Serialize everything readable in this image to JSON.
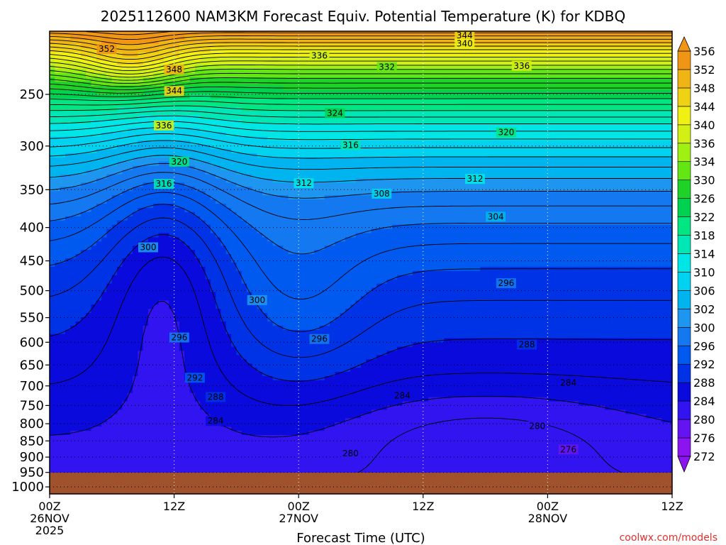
{
  "chart_data": {
    "type": "heatmap",
    "title": "2025112600 NAM3KM Forecast Equiv. Potential Temperature (K) for KDBQ",
    "xlabel": "Forecast Time (UTC)",
    "ylabel": "",
    "x_ticks": [
      {
        "hour": 0,
        "lines": [
          "00Z",
          "26NOV",
          "2025"
        ]
      },
      {
        "hour": 12,
        "lines": [
          "12Z"
        ]
      },
      {
        "hour": 24,
        "lines": [
          "00Z",
          "27NOV"
        ]
      },
      {
        "hour": 36,
        "lines": [
          "12Z"
        ]
      },
      {
        "hour": 48,
        "lines": [
          "00Z",
          "28NOV"
        ]
      },
      {
        "hour": 60,
        "lines": [
          "12Z"
        ]
      }
    ],
    "xlim": [
      0,
      60
    ],
    "y_ticks": [
      250,
      300,
      350,
      400,
      450,
      500,
      550,
      600,
      650,
      700,
      750,
      800,
      850,
      900,
      950,
      1000
    ],
    "ylim": [
      200,
      1025
    ],
    "y_scale": "log",
    "grid": true,
    "colorbar": {
      "levels": [
        272,
        276,
        280,
        284,
        288,
        292,
        296,
        300,
        302,
        306,
        310,
        314,
        318,
        322,
        326,
        330,
        334,
        336,
        340,
        344,
        348,
        352,
        356
      ],
      "colors": [
        "#8c14f0",
        "#6414f0",
        "#3214f0",
        "#0a0adc",
        "#0032e6",
        "#005af0",
        "#1478f0",
        "#1e96f0",
        "#00b4f0",
        "#00d2f0",
        "#00e6e6",
        "#00e6b4",
        "#00e682",
        "#00d250",
        "#1ed228",
        "#64e614",
        "#a0f014",
        "#d2f014",
        "#f0f014",
        "#f0d214",
        "#f0b414",
        "#f09614"
      ]
    },
    "ground_color": "#a0522d",
    "contour_labels": [
      {
        "t": 5.5,
        "p": 213,
        "v": "352"
      },
      {
        "t": 12.0,
        "p": 229,
        "v": "348"
      },
      {
        "t": 12.0,
        "p": 247,
        "v": "344"
      },
      {
        "t": 11.0,
        "p": 279,
        "v": "336"
      },
      {
        "t": 12.5,
        "p": 317,
        "v": "320"
      },
      {
        "t": 11.0,
        "p": 343,
        "v": "316"
      },
      {
        "t": 9.5,
        "p": 429,
        "v": "300"
      },
      {
        "t": 20.0,
        "p": 517,
        "v": "300"
      },
      {
        "t": 12.5,
        "p": 590,
        "v": "296"
      },
      {
        "t": 14.0,
        "p": 680,
        "v": "292"
      },
      {
        "t": 16.0,
        "p": 728,
        "v": "288"
      },
      {
        "t": 16.0,
        "p": 792,
        "v": "284"
      },
      {
        "t": 26.0,
        "p": 218,
        "v": "336"
      },
      {
        "t": 27.5,
        "p": 267,
        "v": "324"
      },
      {
        "t": 29.0,
        "p": 299,
        "v": "316"
      },
      {
        "t": 24.5,
        "p": 342,
        "v": "312"
      },
      {
        "t": 32.0,
        "p": 355,
        "v": "308"
      },
      {
        "t": 26.0,
        "p": 593,
        "v": "296"
      },
      {
        "t": 34.0,
        "p": 724,
        "v": "284"
      },
      {
        "t": 29.0,
        "p": 888,
        "v": "280"
      },
      {
        "t": 32.5,
        "p": 227,
        "v": "332"
      },
      {
        "t": 40.0,
        "p": 203,
        "v": "344"
      },
      {
        "t": 40.0,
        "p": 209,
        "v": "340"
      },
      {
        "t": 45.5,
        "p": 226,
        "v": "336"
      },
      {
        "t": 44.0,
        "p": 286,
        "v": "320"
      },
      {
        "t": 41.0,
        "p": 337,
        "v": "312"
      },
      {
        "t": 43.0,
        "p": 385,
        "v": "304"
      },
      {
        "t": 44.0,
        "p": 487,
        "v": "296"
      },
      {
        "t": 46.0,
        "p": 605,
        "v": "288"
      },
      {
        "t": 50.0,
        "p": 692,
        "v": "284"
      },
      {
        "t": 47.0,
        "p": 807,
        "v": "280"
      },
      {
        "t": 50.0,
        "p": 876,
        "v": "276"
      }
    ]
  },
  "credit": "coolwx.com/models"
}
